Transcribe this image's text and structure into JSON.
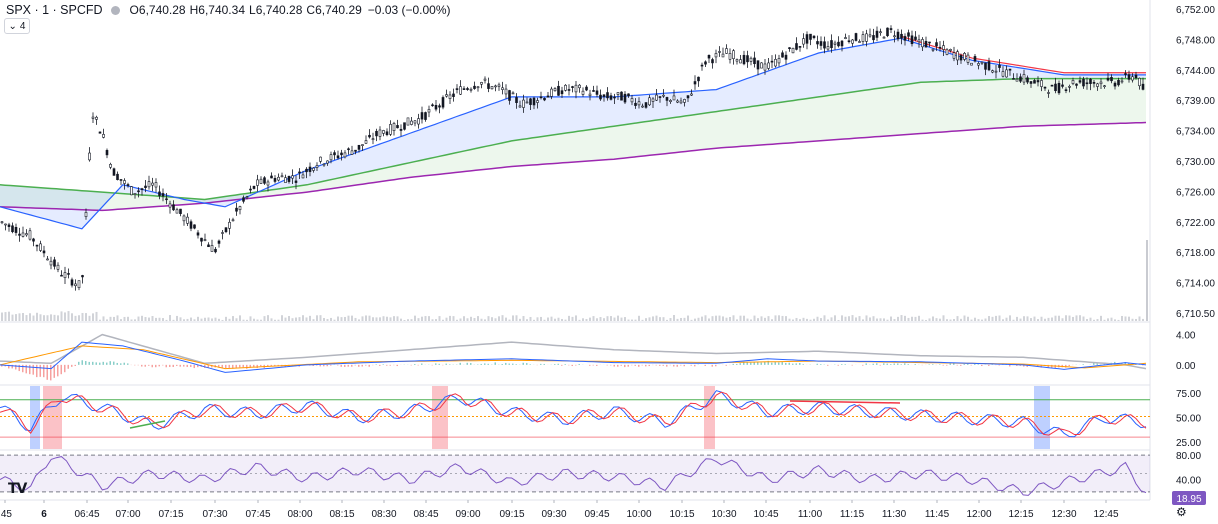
{
  "header": {
    "symbol": "SPX · 1 · SPCFD",
    "open_label": "O",
    "open": "6,740.28",
    "high_label": "H",
    "high": "6,740.34",
    "low_label": "L",
    "low": "6,740.28",
    "close_label": "C",
    "close": "6,740.29",
    "change": "−0.03 (−0.00%)"
  },
  "indicators_toggle": "4",
  "logo_text": "TV",
  "settings_icon": "gear-icon",
  "chart_data": [
    {
      "type": "candlestick",
      "title": "",
      "price_ticks": [
        "6,752.00",
        "6,748.00",
        "6,744.00",
        "6,739.00",
        "6,734.00",
        "6,730.00",
        "6,726.00",
        "6,722.00",
        "6,718.00",
        "6,714.00",
        "6,710.50"
      ],
      "time_ticks": [
        ":45",
        "6",
        "06:45",
        "07:00",
        "07:15",
        "07:30",
        "07:45",
        "08:00",
        "08:15",
        "08:30",
        "08:45",
        "09:00",
        "09:15",
        "09:30",
        "09:45",
        "10:00",
        "10:15",
        "10:30",
        "10:45",
        "11:00",
        "11:15",
        "11:30",
        "11:45",
        "12:00",
        "12:15",
        "12:30",
        "12:45"
      ],
      "ylim": [
        6710.5,
        6752
      ],
      "price_path": [
        [
          0,
          6723
        ],
        [
          3,
          6721
        ],
        [
          6,
          6716
        ],
        [
          8,
          6714
        ],
        [
          9,
          6738
        ],
        [
          10,
          6735
        ],
        [
          11,
          6730
        ],
        [
          13,
          6727
        ],
        [
          15,
          6728
        ],
        [
          17,
          6725
        ],
        [
          19,
          6722
        ],
        [
          21,
          6719
        ],
        [
          23,
          6724
        ],
        [
          25,
          6728
        ],
        [
          27,
          6729
        ],
        [
          29,
          6729
        ],
        [
          31,
          6731
        ],
        [
          33,
          6732
        ],
        [
          35,
          6733
        ],
        [
          37,
          6735
        ],
        [
          39,
          6736
        ],
        [
          41,
          6737
        ],
        [
          43,
          6739
        ],
        [
          45,
          6741
        ],
        [
          47,
          6742
        ],
        [
          49,
          6741
        ],
        [
          51,
          6739
        ],
        [
          53,
          6740
        ],
        [
          55,
          6741
        ],
        [
          57,
          6741
        ],
        [
          59,
          6740
        ],
        [
          61,
          6740
        ],
        [
          63,
          6739
        ],
        [
          65,
          6740
        ],
        [
          67,
          6739
        ],
        [
          69,
          6745
        ],
        [
          71,
          6746
        ],
        [
          73,
          6745
        ],
        [
          75,
          6744
        ],
        [
          77,
          6746
        ],
        [
          79,
          6748
        ],
        [
          81,
          6747
        ],
        [
          83,
          6748
        ],
        [
          85,
          6748
        ],
        [
          87,
          6749
        ],
        [
          89,
          6748
        ],
        [
          91,
          6747
        ],
        [
          93,
          6746
        ],
        [
          95,
          6745
        ],
        [
          97,
          6744
        ],
        [
          99,
          6743
        ],
        [
          101,
          6742
        ],
        [
          103,
          6741
        ],
        [
          105,
          6742
        ],
        [
          107,
          6742
        ],
        [
          109,
          6742
        ],
        [
          111,
          6743
        ],
        [
          112,
          6740.3
        ]
      ],
      "ema_fast": [
        [
          0,
          6725
        ],
        [
          8,
          6722
        ],
        [
          12,
          6728
        ],
        [
          18,
          6726
        ],
        [
          22,
          6725
        ],
        [
          30,
          6730
        ],
        [
          40,
          6735
        ],
        [
          50,
          6740
        ],
        [
          60,
          6740
        ],
        [
          70,
          6741
        ],
        [
          80,
          6746
        ],
        [
          88,
          6748
        ],
        [
          95,
          6745
        ],
        [
          104,
          6743
        ],
        [
          112,
          6743
        ]
      ],
      "ema_mid": [
        [
          0,
          6728
        ],
        [
          10,
          6727
        ],
        [
          20,
          6726
        ],
        [
          30,
          6728
        ],
        [
          40,
          6731
        ],
        [
          50,
          6734
        ],
        [
          60,
          6736
        ],
        [
          70,
          6738
        ],
        [
          80,
          6740
        ],
        [
          90,
          6742
        ],
        [
          100,
          6742.5
        ],
        [
          112,
          6742.5
        ]
      ],
      "ema_slow": [
        [
          0,
          6725
        ],
        [
          10,
          6724.5
        ],
        [
          20,
          6725.5
        ],
        [
          30,
          6727
        ],
        [
          40,
          6729
        ],
        [
          50,
          6730.5
        ],
        [
          60,
          6731.5
        ],
        [
          70,
          6733
        ],
        [
          80,
          6734
        ],
        [
          90,
          6735
        ],
        [
          100,
          6736
        ],
        [
          112,
          6736.5
        ]
      ],
      "series": [
        {
          "name": "",
          "color": "#f23645"
        },
        {
          "name": "",
          "color": "#2962ff"
        },
        {
          "name": "",
          "color": "#4caf50"
        },
        {
          "name": "",
          "color": "#9c27b0"
        }
      ],
      "volume_last": 6710.5
    },
    {
      "type": "line",
      "title": "",
      "ticks": [
        "4.00",
        "0.00"
      ],
      "ylim": [
        -2,
        5
      ],
      "macd": [
        [
          0,
          0
        ],
        [
          5,
          -0.5
        ],
        [
          8,
          3
        ],
        [
          12,
          2.5
        ],
        [
          18,
          0.5
        ],
        [
          22,
          -1
        ],
        [
          30,
          0
        ],
        [
          40,
          0.5
        ],
        [
          50,
          0.8
        ],
        [
          60,
          0.3
        ],
        [
          70,
          0.2
        ],
        [
          75,
          0.8
        ],
        [
          80,
          0.5
        ],
        [
          90,
          0.4
        ],
        [
          100,
          0
        ],
        [
          104,
          -0.6
        ],
        [
          110,
          0.3
        ],
        [
          112,
          0
        ]
      ],
      "signal": [
        [
          0,
          0
        ],
        [
          8,
          2.5
        ],
        [
          14,
          2
        ],
        [
          22,
          -0.5
        ],
        [
          35,
          0.4
        ],
        [
          50,
          0.6
        ],
        [
          70,
          0.3
        ],
        [
          80,
          0.5
        ],
        [
          100,
          0.1
        ],
        [
          106,
          -0.4
        ],
        [
          112,
          0.2
        ]
      ],
      "ref": [
        [
          0,
          0.5
        ],
        [
          5,
          0.2
        ],
        [
          10,
          4
        ],
        [
          20,
          0.2
        ],
        [
          30,
          1
        ],
        [
          40,
          2
        ],
        [
          50,
          3
        ],
        [
          60,
          2
        ],
        [
          70,
          1.5
        ],
        [
          80,
          1.8
        ],
        [
          90,
          1.2
        ],
        [
          100,
          1
        ],
        [
          110,
          0
        ],
        [
          112,
          -0.5
        ]
      ]
    },
    {
      "type": "line",
      "title": "",
      "ticks": [
        "75.00",
        "50.00",
        "25.00"
      ],
      "ylim": [
        20,
        80
      ],
      "levels": [
        68,
        51,
        30
      ],
      "values": [
        [
          0,
          60
        ],
        [
          3,
          40
        ],
        [
          6,
          72
        ],
        [
          10,
          60
        ],
        [
          15,
          42
        ],
        [
          20,
          58
        ],
        [
          25,
          54
        ],
        [
          30,
          62
        ],
        [
          35,
          50
        ],
        [
          40,
          56
        ],
        [
          45,
          70
        ],
        [
          50,
          55
        ],
        [
          55,
          48
        ],
        [
          60,
          56
        ],
        [
          65,
          45
        ],
        [
          70,
          72
        ],
        [
          75,
          56
        ],
        [
          80,
          60
        ],
        [
          90,
          52
        ],
        [
          100,
          45
        ],
        [
          104,
          32
        ],
        [
          108,
          50
        ],
        [
          112,
          45
        ]
      ]
    },
    {
      "type": "line",
      "title": "",
      "ticks": [
        "80.00",
        "40.00"
      ],
      "ylim": [
        10,
        85
      ],
      "last_value": "18.95",
      "values": [
        [
          0,
          40
        ],
        [
          3,
          25
        ],
        [
          5,
          80
        ],
        [
          10,
          30
        ],
        [
          15,
          50
        ],
        [
          20,
          40
        ],
        [
          25,
          60
        ],
        [
          30,
          42
        ],
        [
          35,
          55
        ],
        [
          40,
          40
        ],
        [
          45,
          60
        ],
        [
          50,
          35
        ],
        [
          55,
          50
        ],
        [
          60,
          45
        ],
        [
          65,
          30
        ],
        [
          70,
          75
        ],
        [
          75,
          40
        ],
        [
          80,
          55
        ],
        [
          85,
          40
        ],
        [
          90,
          50
        ],
        [
          95,
          40
        ],
        [
          100,
          20
        ],
        [
          105,
          40
        ],
        [
          110,
          60
        ],
        [
          112,
          18.95
        ]
      ]
    }
  ]
}
